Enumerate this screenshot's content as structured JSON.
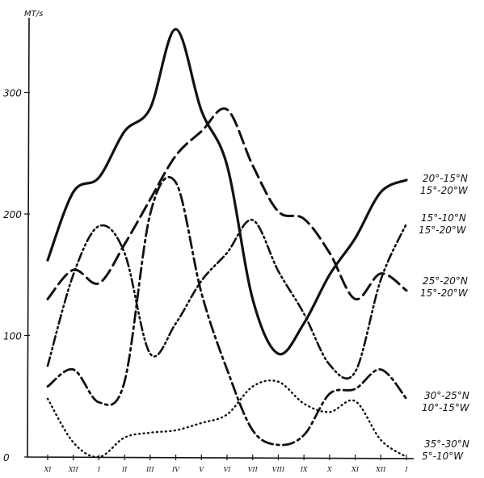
{
  "chart_data": {
    "type": "line",
    "ylabel": "МТ/s",
    "ylim": [
      0,
      360
    ],
    "yticks": [
      0,
      100,
      200,
      300
    ],
    "grid": false,
    "categories": [
      "XI",
      "XII",
      "I",
      "II",
      "III",
      "IV",
      "V",
      "VI",
      "VII",
      "VIII",
      "IX",
      "X",
      "XI",
      "XII",
      "I"
    ],
    "series": [
      {
        "name": "20°-15°N 15°-20°W",
        "style": "solid",
        "values": [
          162,
          218,
          230,
          268,
          287,
          352,
          285,
          240,
          130,
          85,
          110,
          150,
          180,
          218,
          228
        ]
      },
      {
        "name": "15°-10°N 15°-20°W",
        "style": "dash-dot-dot",
        "values": [
          75,
          150,
          190,
          168,
          85,
          110,
          145,
          168,
          195,
          153,
          118,
          76,
          70,
          146,
          192
        ]
      },
      {
        "name": "25°-20°N 15°-20°W",
        "style": "dashed",
        "values": [
          130,
          154,
          143,
          175,
          212,
          248,
          268,
          286,
          240,
          202,
          196,
          168,
          130,
          151,
          137
        ]
      },
      {
        "name": "30°-25°N 10°-15°W",
        "style": "dash-dot",
        "values": [
          58,
          72,
          45,
          62,
          200,
          226,
          135,
          72,
          22,
          10,
          18,
          52,
          56,
          72,
          48
        ]
      },
      {
        "name": "35°-30°N 5°-10°W",
        "style": "dotted",
        "values": [
          48,
          12,
          0,
          16,
          20,
          22,
          28,
          35,
          58,
          62,
          44,
          37,
          46,
          14,
          0
        ]
      }
    ],
    "labels": [
      {
        "line1": "20°-15°N",
        "line2": "15°-20°W"
      },
      {
        "line1": "15°-10°N",
        "line2": "15°-20°W"
      },
      {
        "line1": "25°-20°N",
        "line2": "15°-20°W"
      },
      {
        "line1": "30°-25°N",
        "line2": "10°-15°W"
      },
      {
        "line1": "35°-30°N",
        "line2": "5°-10°W"
      }
    ]
  }
}
